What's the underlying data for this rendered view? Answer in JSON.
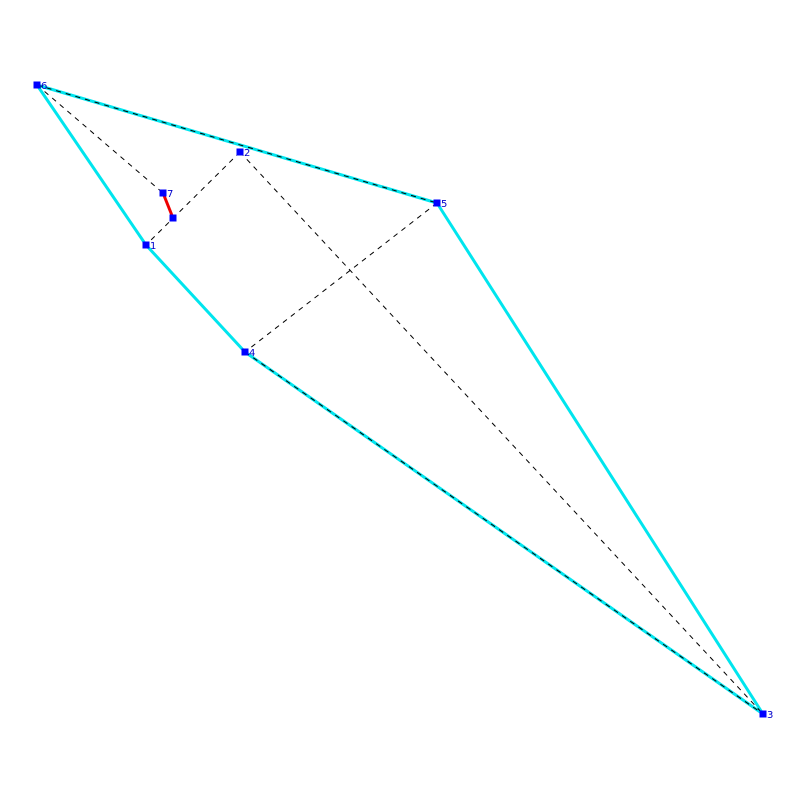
{
  "diagram": {
    "points": [
      {
        "id": "p1",
        "label": "1"
      },
      {
        "id": "p2",
        "label": "2"
      },
      {
        "id": "p3",
        "label": "3"
      },
      {
        "id": "p4",
        "label": "4"
      },
      {
        "id": "p5",
        "label": "5"
      },
      {
        "id": "p6",
        "label": "6"
      },
      {
        "id": "p7",
        "label": "7"
      },
      {
        "id": "pX",
        "label": ""
      }
    ],
    "hull_edges": [
      [
        "p6",
        "p5"
      ],
      [
        "p5",
        "p3"
      ],
      [
        "p3",
        "p4"
      ],
      [
        "p4",
        "p1"
      ],
      [
        "p1",
        "p6"
      ]
    ],
    "dashed_edges": [
      [
        "p6",
        "p5"
      ],
      [
        "p4",
        "p3"
      ],
      [
        "p6",
        "p7"
      ],
      [
        "p2",
        "p1"
      ],
      [
        "p2",
        "p3"
      ],
      [
        "p5",
        "p4"
      ]
    ],
    "highlight_edges": [
      [
        "p7",
        "pX"
      ]
    ],
    "colors": {
      "hull": "#00e5ee",
      "dashed": "#000000",
      "highlight": "#ee0000",
      "point": "#0000ff",
      "label": "#0000cc"
    }
  }
}
